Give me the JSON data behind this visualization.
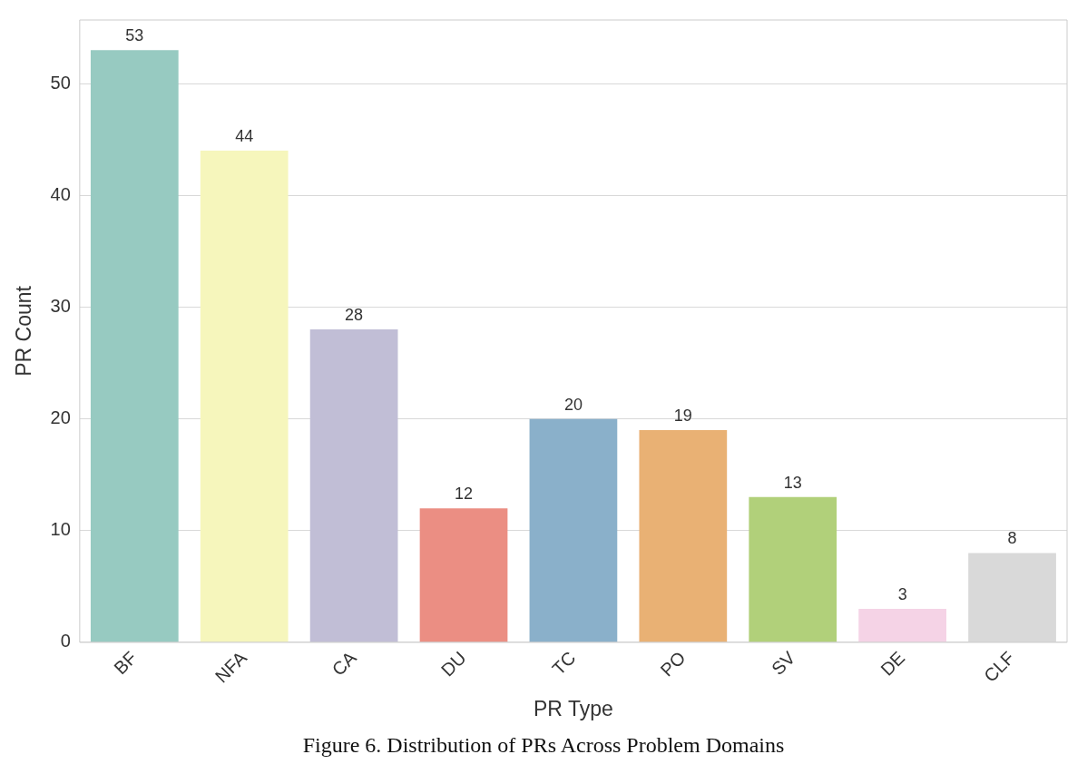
{
  "chart_data": {
    "type": "bar",
    "xlabel": "PR Type",
    "ylabel": "PR Count",
    "categories": [
      "BF",
      "NFA",
      "CA",
      "DU",
      "TC",
      "PO",
      "SV",
      "DE",
      "CLF"
    ],
    "values": [
      53,
      44,
      28,
      12,
      20,
      19,
      13,
      3,
      8
    ],
    "colors": [
      "#97cac1",
      "#f6f6bc",
      "#c1bed6",
      "#eb8e83",
      "#8ab0ca",
      "#e9b174",
      "#b1d07a",
      "#f5d3e6",
      "#d9d9d9"
    ],
    "ylim": [
      0,
      55.7
    ],
    "yticks": [
      0,
      10,
      20,
      30,
      40,
      50
    ],
    "grid": "y",
    "data_labels": true,
    "annotations": [
      "Figure 6. Distribution of PRs Across Problem Domains"
    ]
  }
}
